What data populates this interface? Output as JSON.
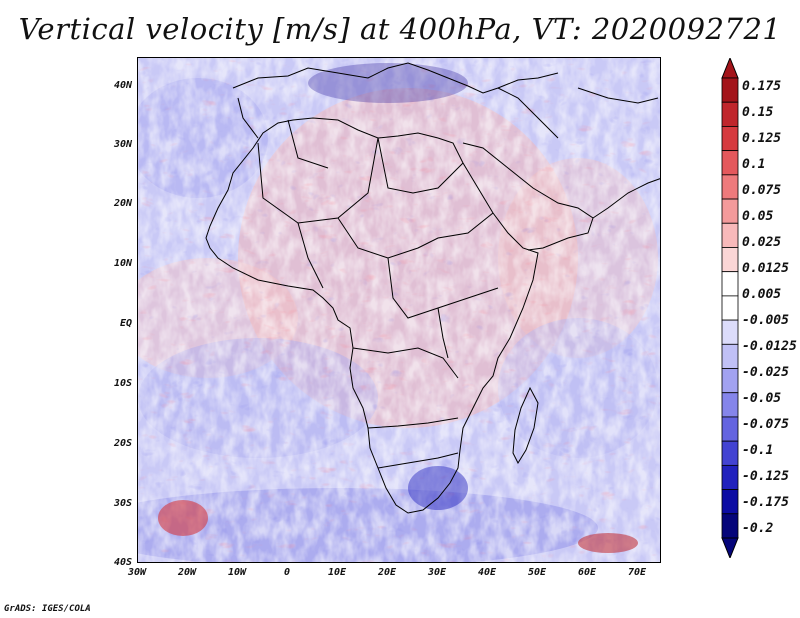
{
  "title": "Vertical velocity [m/s] at 400hPa, VT: 2020092721",
  "credit": "GrADS: IGES/COLA",
  "lat_labels": [
    "40N",
    "30N",
    "20N",
    "10N",
    "EQ",
    "10S",
    "20S",
    "30S",
    "40S"
  ],
  "lon_labels": [
    "30W",
    "20W",
    "10W",
    "0",
    "10E",
    "20E",
    "30E",
    "40E",
    "50E",
    "60E",
    "70E"
  ],
  "colorbar": {
    "levels": [
      "0.175",
      "0.15",
      "0.125",
      "0.1",
      "0.075",
      "0.05",
      "0.025",
      "0.0125",
      "0.005",
      "-0.005",
      "-0.0125",
      "-0.025",
      "-0.05",
      "-0.075",
      "-0.1",
      "-0.125",
      "-0.175",
      "-0.2"
    ],
    "colors": [
      "#a3141a",
      "#c0262c",
      "#d63a3f",
      "#e4585c",
      "#ee7a7c",
      "#f39a9b",
      "#f8b9ba",
      "#fbd6d6",
      "#ffffff",
      "#ffffff",
      "#dcdcfb",
      "#c0c0f6",
      "#a2a2f0",
      "#8585ea",
      "#6464e0",
      "#4343d2",
      "#2121bd",
      "#0c0ca3",
      "#05057a"
    ]
  },
  "colors": {
    "frame": "#000000",
    "background": "#ffffff"
  }
}
